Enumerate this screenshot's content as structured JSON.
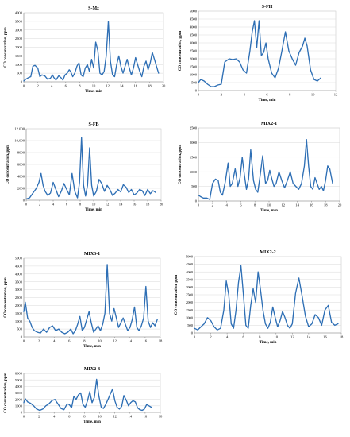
{
  "chart_data": [
    {
      "type": "line",
      "title": "S-Mz",
      "xlabel": "Time, min",
      "ylabel": "CO concentration, ppm",
      "xlim": [
        0,
        20
      ],
      "ylim": [
        0,
        4000
      ],
      "xticks": [
        "0",
        "2",
        "4",
        "6",
        "8",
        "10",
        "12",
        "14",
        "16",
        "18",
        "20"
      ],
      "yticks": [
        "0",
        "500",
        "1000",
        "1500",
        "2000",
        "2500",
        "3000",
        "3500",
        "4000"
      ],
      "x": [
        0,
        0.3,
        0.7,
        1.0,
        1.3,
        1.6,
        2.0,
        2.3,
        2.6,
        3.0,
        3.4,
        3.8,
        4.1,
        4.3,
        4.6,
        5.0,
        5.3,
        5.6,
        5.9,
        6.2,
        6.5,
        6.7,
        7.0,
        7.3,
        7.6,
        7.9,
        8.2,
        8.5,
        8.8,
        9.1,
        9.4,
        9.7,
        10.0,
        10.3,
        10.6,
        10.9,
        11.2,
        11.5,
        11.8,
        12.1,
        12.4,
        12.7,
        13.0,
        13.3,
        13.6,
        13.9,
        14.2,
        14.5,
        14.8,
        15.1,
        15.4,
        15.7,
        16.0,
        16.3,
        16.6,
        16.9,
        17.2,
        17.5,
        17.8,
        18.1,
        18.4,
        18.7,
        19.0,
        19.3
      ],
      "y": [
        50,
        150,
        250,
        300,
        900,
        950,
        800,
        300,
        400,
        350,
        150,
        200,
        400,
        250,
        100,
        350,
        250,
        100,
        400,
        500,
        700,
        600,
        300,
        500,
        900,
        1100,
        400,
        300,
        800,
        1000,
        600,
        1300,
        800,
        2300,
        1800,
        500,
        400,
        600,
        1500,
        3500,
        1200,
        400,
        300,
        1000,
        1500,
        900,
        500,
        900,
        1300,
        800,
        400,
        800,
        1400,
        1000,
        600,
        300,
        900,
        1200,
        700,
        1100,
        1700,
        1300,
        900,
        500
      ]
    },
    {
      "type": "line",
      "title": "S-FH",
      "xlabel": "Time, min",
      "ylabel": "CO concentration, ppm",
      "xlim": [
        0,
        12
      ],
      "ylim": [
        0,
        5000
      ],
      "xticks": [
        "0",
        "2",
        "4",
        "6",
        "8",
        "10",
        "12"
      ],
      "yticks": [
        "0",
        "500",
        "1000",
        "1500",
        "2000",
        "2500",
        "3000",
        "3500",
        "4000",
        "4500",
        "5000"
      ],
      "x": [
        0,
        0.2,
        0.5,
        0.8,
        1.1,
        1.4,
        1.7,
        2.0,
        2.3,
        2.5,
        2.7,
        3.0,
        3.3,
        3.6,
        3.9,
        4.2,
        4.5,
        4.7,
        4.9,
        5.1,
        5.3,
        5.5,
        5.7,
        5.9,
        6.1,
        6.4,
        6.7,
        7.0,
        7.3,
        7.6,
        7.9,
        8.2,
        8.5,
        8.8,
        9.1,
        9.3,
        9.5,
        9.8,
        10.1,
        10.4,
        10.7
      ],
      "y": [
        500,
        700,
        600,
        400,
        250,
        250,
        350,
        400,
        1800,
        1900,
        2000,
        1950,
        2000,
        1800,
        1300,
        1100,
        2500,
        3700,
        4400,
        2700,
        4400,
        2200,
        2400,
        3000,
        2000,
        1100,
        800,
        1400,
        2500,
        3700,
        2500,
        2000,
        1600,
        2400,
        2800,
        3300,
        2800,
        1300,
        700,
        600,
        800
      ]
    },
    {
      "type": "line",
      "title": "S-FB",
      "xlabel": "Time, min",
      "ylabel": "CO concentration, ppm",
      "xlim": [
        0,
        20
      ],
      "ylim": [
        0,
        12000
      ],
      "xticks": [
        "0",
        "2",
        "4",
        "6",
        "8",
        "10",
        "12",
        "14",
        "16",
        "18",
        "20"
      ],
      "yticks": [
        "0",
        "2000",
        "4000",
        "6000",
        "8000",
        "10,000",
        "12,000"
      ],
      "x": [
        0,
        0.5,
        1.0,
        1.5,
        1.9,
        2.2,
        2.5,
        2.8,
        3.2,
        3.6,
        4.0,
        4.4,
        4.8,
        5.2,
        5.6,
        6.0,
        6.4,
        6.8,
        7.2,
        7.6,
        7.9,
        8.2,
        8.5,
        8.8,
        9.1,
        9.4,
        9.7,
        10.0,
        10.4,
        10.8,
        11.2,
        11.6,
        12.0,
        12.4,
        12.8,
        13.2,
        13.6,
        14.0,
        14.4,
        14.8,
        15.2,
        15.6,
        16.0,
        16.4,
        16.8,
        17.2,
        17.6,
        18.0,
        18.4,
        18.8,
        19.2
      ],
      "y": [
        200,
        400,
        1200,
        2000,
        3000,
        4500,
        2500,
        1500,
        800,
        1200,
        3000,
        1800,
        600,
        1500,
        2800,
        1800,
        900,
        4500,
        1500,
        400,
        3000,
        10500,
        2500,
        700,
        2500,
        8800,
        2500,
        700,
        1500,
        3500,
        2800,
        1500,
        2500,
        1800,
        800,
        1200,
        1800,
        1400,
        2600,
        2200,
        1300,
        1800,
        900,
        1200,
        1800,
        1600,
        800,
        1800,
        1100,
        1600,
        1300
      ]
    },
    {
      "type": "line",
      "title": "MIX2-1",
      "xlabel": "Time, min",
      "ylabel": "CO concentration, ppm",
      "xlim": [
        0,
        20
      ],
      "ylim": [
        0,
        2500
      ],
      "xticks": [
        "0",
        "2",
        "4",
        "6",
        "8",
        "10",
        "12",
        "14",
        "16",
        "18",
        "20"
      ],
      "yticks": [
        "0",
        "500",
        "1000",
        "1500",
        "2000",
        "2500"
      ],
      "x": [
        0,
        0.3,
        0.7,
        1.2,
        1.6,
        2.0,
        2.4,
        2.8,
        3.1,
        3.4,
        3.8,
        4.2,
        4.5,
        4.8,
        5.2,
        5.6,
        5.9,
        6.2,
        6.5,
        6.8,
        7.1,
        7.4,
        7.8,
        8.1,
        8.4,
        8.7,
        9.1,
        9.5,
        9.8,
        10.1,
        10.4,
        10.7,
        11.0,
        11.4,
        11.8,
        12.2,
        12.6,
        13.0,
        13.4,
        13.8,
        14.2,
        14.6,
        15.0,
        15.3,
        15.6,
        15.9,
        16.2,
        16.5,
        16.8,
        17.1,
        17.4,
        17.7,
        18.0,
        18.3,
        18.6,
        19.0
      ],
      "y": [
        200,
        150,
        100,
        100,
        50,
        600,
        750,
        700,
        300,
        200,
        650,
        1300,
        500,
        600,
        1100,
        500,
        800,
        1500,
        900,
        400,
        750,
        1750,
        700,
        400,
        300,
        800,
        1550,
        600,
        700,
        1050,
        750,
        500,
        600,
        1000,
        700,
        450,
        700,
        1000,
        600,
        500,
        400,
        600,
        1200,
        2100,
        1200,
        500,
        400,
        800,
        600,
        400,
        500,
        350,
        700,
        1200,
        1100,
        600
      ]
    },
    {
      "type": "line",
      "title": "MIX3-1",
      "xlabel": "Time, min",
      "ylabel": "CO concentration, ppm",
      "xlim": [
        0,
        18
      ],
      "ylim": [
        0,
        5000
      ],
      "xticks": [
        "0",
        "2",
        "4",
        "6",
        "8",
        "10",
        "12",
        "14",
        "16",
        "18"
      ],
      "yticks": [
        "0",
        "500",
        "1000",
        "1500",
        "2000",
        "2500",
        "3000",
        "3500",
        "4000",
        "4500",
        "5000"
      ],
      "x": [
        0,
        0.2,
        0.5,
        0.8,
        1.1,
        1.4,
        1.8,
        2.2,
        2.6,
        3.0,
        3.4,
        3.8,
        4.2,
        4.6,
        5.0,
        5.4,
        5.8,
        6.2,
        6.5,
        6.8,
        7.1,
        7.4,
        7.7,
        8.0,
        8.3,
        8.6,
        8.9,
        9.2,
        9.5,
        9.8,
        10.1,
        10.4,
        10.7,
        11.0,
        11.3,
        11.6,
        11.9,
        12.2,
        12.5,
        12.8,
        13.1,
        13.4,
        13.7,
        14.0,
        14.3,
        14.6,
        14.9,
        15.2,
        15.5,
        15.8,
        16.1,
        16.4,
        16.7,
        17.0,
        17.3,
        17.6
      ],
      "y": [
        1600,
        2200,
        1200,
        1000,
        600,
        400,
        300,
        250,
        500,
        300,
        600,
        700,
        400,
        500,
        300,
        200,
        300,
        500,
        200,
        400,
        800,
        1300,
        400,
        600,
        1100,
        1600,
        900,
        300,
        500,
        700,
        400,
        800,
        1500,
        4600,
        1500,
        1000,
        1800,
        1200,
        600,
        900,
        1200,
        800,
        400,
        600,
        1100,
        1900,
        600,
        400,
        700,
        1200,
        3200,
        1000,
        600,
        900,
        700,
        1100
      ]
    },
    {
      "type": "line",
      "title": "MIX2-2",
      "xlabel": "Time, min",
      "ylabel": "CO concentration, ppm",
      "xlim": [
        0,
        18
      ],
      "ylim": [
        0,
        5000
      ],
      "xticks": [
        "0",
        "2",
        "4",
        "6",
        "8",
        "10",
        "12",
        "14",
        "16",
        "18"
      ],
      "yticks": [
        "0",
        "500",
        "1000",
        "1500",
        "2000",
        "2500",
        "3000",
        "3500",
        "4000",
        "4500",
        "5000"
      ],
      "x": [
        0,
        0.4,
        0.8,
        1.2,
        1.6,
        2.0,
        2.4,
        2.8,
        3.2,
        3.6,
        3.9,
        4.2,
        4.5,
        4.8,
        5.1,
        5.4,
        5.7,
        6.0,
        6.3,
        6.6,
        6.9,
        7.2,
        7.5,
        7.8,
        8.1,
        8.4,
        8.7,
        9.0,
        9.3,
        9.6,
        9.9,
        10.2,
        10.5,
        10.8,
        11.1,
        11.4,
        11.7,
        12.0,
        12.4,
        12.8,
        13.2,
        13.6,
        14.0,
        14.4,
        14.8,
        15.2,
        15.6,
        16.0,
        16.4,
        16.8,
        17.2,
        17.6
      ],
      "y": [
        300,
        200,
        400,
        600,
        1000,
        800,
        400,
        200,
        300,
        1500,
        3400,
        2500,
        600,
        300,
        1500,
        3300,
        4400,
        2500,
        500,
        300,
        1800,
        2900,
        2000,
        4000,
        2800,
        1500,
        600,
        300,
        700,
        1700,
        1000,
        400,
        800,
        1400,
        1000,
        500,
        300,
        600,
        2600,
        3600,
        2400,
        1100,
        400,
        600,
        1200,
        1000,
        500,
        1500,
        1800,
        700,
        500,
        600
      ]
    },
    {
      "type": "line",
      "title": "MIX2-3",
      "xlabel": "Time, min",
      "ylabel": "CO concentration, ppm",
      "xlim": [
        0,
        18
      ],
      "ylim": [
        0,
        6000
      ],
      "xticks": [
        "0",
        "2",
        "4",
        "6",
        "8",
        "10",
        "12",
        "14",
        "16",
        "18"
      ],
      "yticks": [
        "0",
        "1000",
        "2000",
        "3000",
        "4000",
        "5000",
        "6000"
      ],
      "x": [
        0,
        0.2,
        0.5,
        0.9,
        1.3,
        1.7,
        2.1,
        2.5,
        2.9,
        3.3,
        3.7,
        4.1,
        4.5,
        4.9,
        5.3,
        5.7,
        6.0,
        6.3,
        6.6,
        6.9,
        7.2,
        7.5,
        7.8,
        8.1,
        8.4,
        8.7,
        9.0,
        9.3,
        9.6,
        9.9,
        10.2,
        10.5,
        10.8,
        11.1,
        11.4,
        11.7,
        12.0,
        12.3,
        12.6,
        12.9,
        13.2,
        13.5,
        13.8,
        14.1,
        14.4,
        14.7,
        15.0,
        15.3,
        15.6,
        15.9,
        16.2,
        16.5,
        16.8
      ],
      "y": [
        1500,
        2100,
        1600,
        1400,
        1000,
        500,
        300,
        500,
        1000,
        1300,
        1800,
        2000,
        1300,
        600,
        400,
        1300,
        1200,
        700,
        2500,
        2000,
        2700,
        3000,
        1200,
        800,
        1800,
        3200,
        1500,
        2300,
        5100,
        2500,
        800,
        600,
        1200,
        2000,
        2800,
        3600,
        1800,
        800,
        500,
        900,
        2600,
        1900,
        1000,
        1500,
        1800,
        1600,
        700,
        400,
        300,
        500,
        1200,
        1000,
        800
      ]
    }
  ]
}
